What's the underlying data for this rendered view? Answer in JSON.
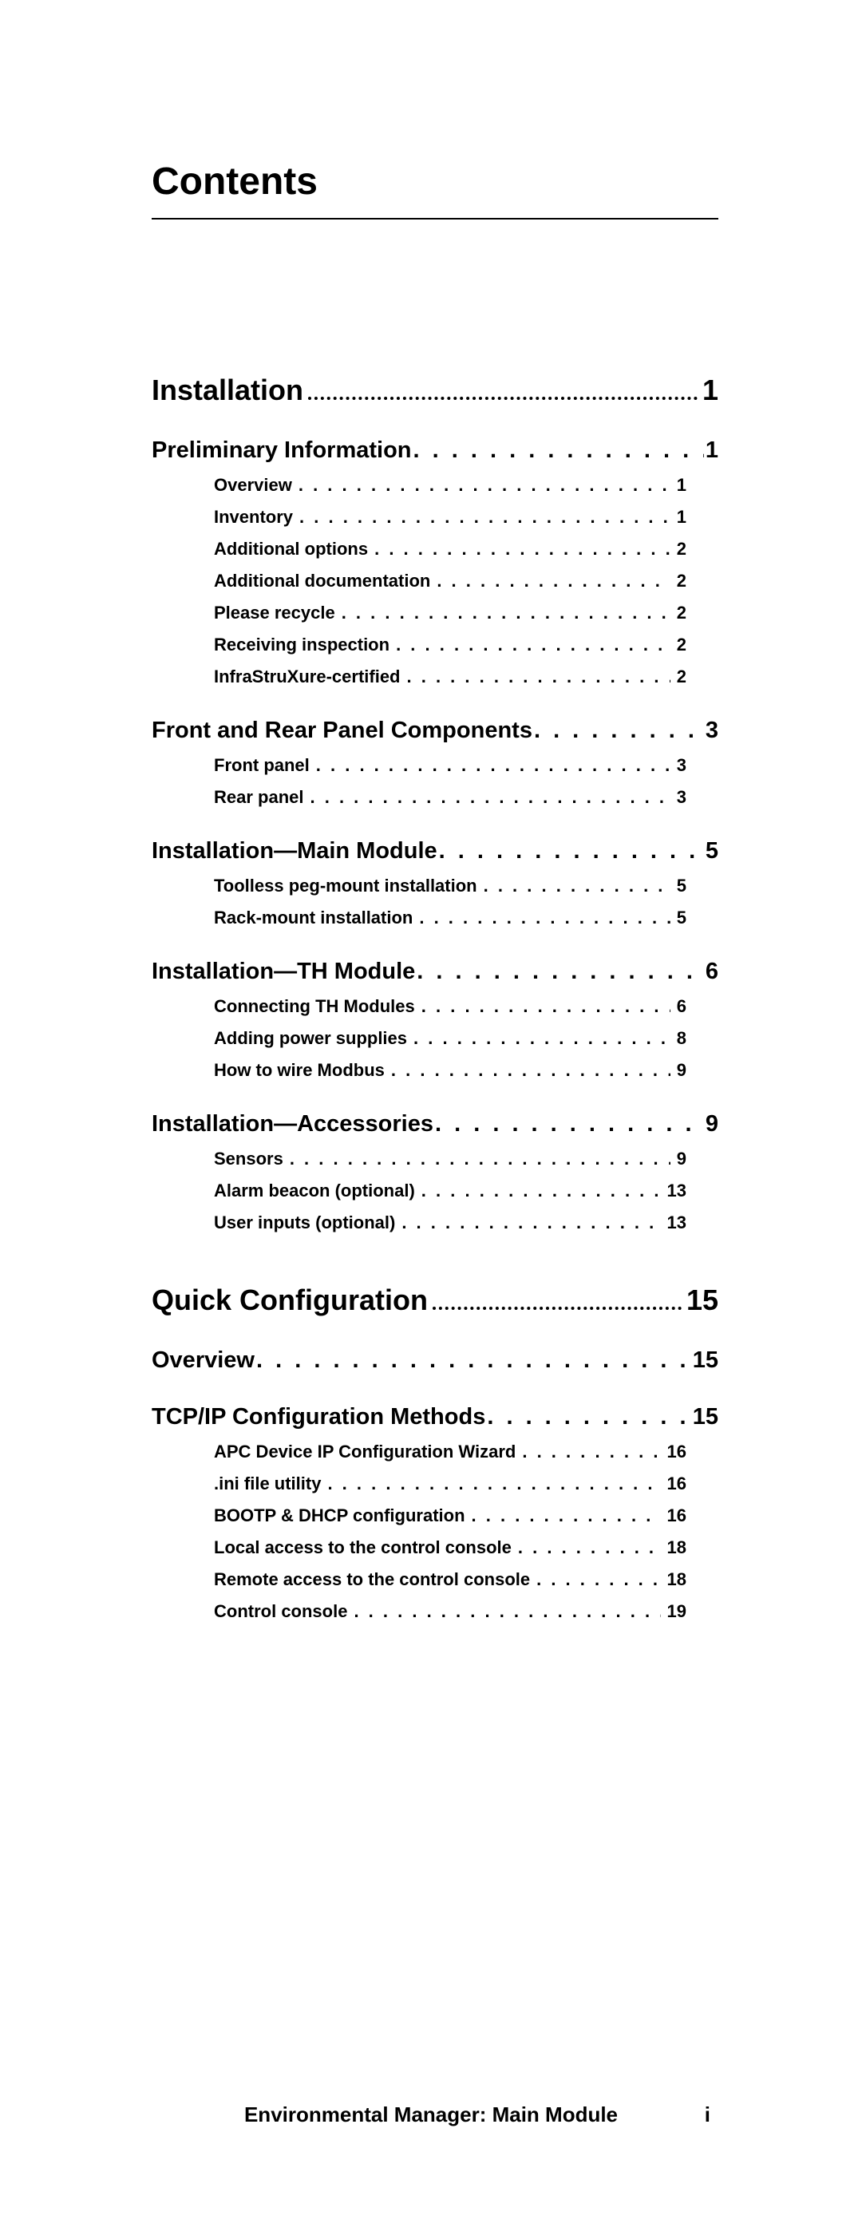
{
  "title": "Contents",
  "footer": "Environmental Manager: Main Module",
  "page_number": "i",
  "sections": [
    {
      "label": "Installation",
      "page": "1",
      "subsections": [
        {
          "label": "Preliminary Information",
          "page": "1",
          "items": [
            {
              "label": "Overview",
              "page": "1"
            },
            {
              "label": "Inventory",
              "page": "1"
            },
            {
              "label": "Additional options",
              "page": "2"
            },
            {
              "label": "Additional documentation",
              "page": "2"
            },
            {
              "label": "Please recycle",
              "page": "2"
            },
            {
              "label": "Receiving inspection",
              "page": "2"
            },
            {
              "label": "InfraStruXure-certified",
              "page": "2"
            }
          ]
        },
        {
          "label": "Front and Rear Panel Components",
          "page": "3",
          "items": [
            {
              "label": "Front panel",
              "page": "3"
            },
            {
              "label": "Rear panel",
              "page": "3"
            }
          ]
        },
        {
          "label": "Installation—Main Module",
          "page": "5",
          "items": [
            {
              "label": "Toolless peg-mount installation",
              "page": "5"
            },
            {
              "label": "Rack-mount installation",
              "page": "5"
            }
          ]
        },
        {
          "label": "Installation—TH Module",
          "page": "6",
          "items": [
            {
              "label": "Connecting TH Modules",
              "page": "6"
            },
            {
              "label": "Adding power supplies",
              "page": "8"
            },
            {
              "label": "How to wire Modbus",
              "page": "9"
            }
          ]
        },
        {
          "label": "Installation—Accessories",
          "page": "9",
          "items": [
            {
              "label": "Sensors",
              "page": "9"
            },
            {
              "label": "Alarm beacon (optional)",
              "page": "13"
            },
            {
              "label": "User inputs (optional)",
              "page": "13"
            }
          ]
        }
      ]
    },
    {
      "label": "Quick Configuration",
      "page": "15",
      "subsections": [
        {
          "label": "Overview",
          "page": "15",
          "items": []
        },
        {
          "label": "TCP/IP Configuration Methods",
          "page": "15",
          "items": [
            {
              "label": "APC Device IP Configuration Wizard",
              "page": "16"
            },
            {
              "label": ".ini file utility",
              "page": "16"
            },
            {
              "label": "BOOTP & DHCP configuration",
              "page": "16"
            },
            {
              "label": "Local access to the control console",
              "page": "18"
            },
            {
              "label": "Remote access to the control console",
              "page": "18"
            },
            {
              "label": "Control console",
              "page": "19"
            }
          ]
        }
      ]
    }
  ]
}
